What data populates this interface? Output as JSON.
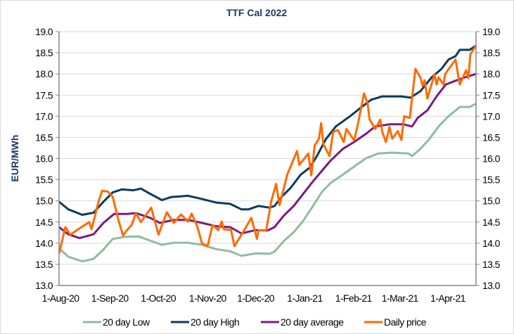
{
  "chart_data": {
    "type": "line",
    "title": "TTF Cal 2022",
    "xlabel": "",
    "ylabel": "EUR/MWh",
    "x_unit": "trading day index",
    "xlim": [
      0,
      185
    ],
    "ylim": [
      13.0,
      19.0
    ],
    "y_ticks": [
      "13.0",
      "13.5",
      "14.0",
      "14.5",
      "15.0",
      "15.5",
      "16.0",
      "16.5",
      "17.0",
      "17.5",
      "18.0",
      "18.5",
      "19.0"
    ],
    "secondary_y_axis": true,
    "grid": "horizontal",
    "legend_position": "bottom",
    "x_ticks": [
      {
        "x": 0,
        "label": "1-Aug-20"
      },
      {
        "x": 21.9,
        "label": "1-Sep-20"
      },
      {
        "x": 43.4,
        "label": "1-Oct-20"
      },
      {
        "x": 65.3,
        "label": "1-Nov-20"
      },
      {
        "x": 86.6,
        "label": "1-Dec-20"
      },
      {
        "x": 108.4,
        "label": "1-Jan-21"
      },
      {
        "x": 130,
        "label": "1-Feb-21"
      },
      {
        "x": 150.6,
        "label": "1-Mar-21"
      },
      {
        "x": 171.9,
        "label": "1-Apr-21"
      }
    ],
    "series": [
      {
        "name": "20 day Low",
        "color": "#8fbc9f",
        "points": [
          [
            0,
            13.88
          ],
          [
            4.1,
            13.68
          ],
          [
            10.3,
            13.57
          ],
          [
            15.3,
            13.63
          ],
          [
            19.7,
            13.85
          ],
          [
            23.8,
            14.1
          ],
          [
            29.1,
            14.15
          ],
          [
            35.3,
            14.16
          ],
          [
            40.3,
            14.06
          ],
          [
            45.6,
            13.96
          ],
          [
            50.9,
            14.01
          ],
          [
            57.2,
            14.01
          ],
          [
            63.4,
            13.96
          ],
          [
            69.7,
            13.86
          ],
          [
            75.9,
            13.81
          ],
          [
            80.9,
            13.7
          ],
          [
            87.2,
            13.76
          ],
          [
            93.4,
            13.75
          ],
          [
            95.6,
            13.8
          ],
          [
            99.7,
            14.05
          ],
          [
            104.1,
            14.26
          ],
          [
            108.1,
            14.51
          ],
          [
            112.2,
            14.84
          ],
          [
            116.6,
            15.21
          ],
          [
            120.6,
            15.43
          ],
          [
            125.9,
            15.62
          ],
          [
            130.9,
            15.81
          ],
          [
            136.3,
            16.01
          ],
          [
            141.6,
            16.12
          ],
          [
            147.8,
            16.14
          ],
          [
            155,
            16.12
          ],
          [
            156.6,
            16.06
          ],
          [
            160.3,
            16.23
          ],
          [
            164.4,
            16.47
          ],
          [
            168.4,
            16.76
          ],
          [
            172.8,
            17.0
          ],
          [
            177.8,
            17.22
          ],
          [
            182.2,
            17.22
          ],
          [
            185,
            17.3
          ]
        ]
      },
      {
        "name": "20 day High",
        "color": "#0b3a5c",
        "points": [
          [
            0,
            14.98
          ],
          [
            4.1,
            14.8
          ],
          [
            10.3,
            14.67
          ],
          [
            15.3,
            14.72
          ],
          [
            19.7,
            14.98
          ],
          [
            23.8,
            15.2
          ],
          [
            27.8,
            15.27
          ],
          [
            33.1,
            15.25
          ],
          [
            36.3,
            15.29
          ],
          [
            40.3,
            15.17
          ],
          [
            45.6,
            15.02
          ],
          [
            49.7,
            15.09
          ],
          [
            57.2,
            15.12
          ],
          [
            62.2,
            15.06
          ],
          [
            69.7,
            14.96
          ],
          [
            75.9,
            14.93
          ],
          [
            80.9,
            14.8
          ],
          [
            84.1,
            14.8
          ],
          [
            88.4,
            14.88
          ],
          [
            93.4,
            14.84
          ],
          [
            95.6,
            14.88
          ],
          [
            98.8,
            15.1
          ],
          [
            102.8,
            15.31
          ],
          [
            107.2,
            15.62
          ],
          [
            111.3,
            15.79
          ],
          [
            114.4,
            16.06
          ],
          [
            118.4,
            16.46
          ],
          [
            122.8,
            16.76
          ],
          [
            129.1,
            17.0
          ],
          [
            133.1,
            17.17
          ],
          [
            138.4,
            17.39
          ],
          [
            143.4,
            17.47
          ],
          [
            151.9,
            17.47
          ],
          [
            155.9,
            17.44
          ],
          [
            160.3,
            17.59
          ],
          [
            165.3,
            17.92
          ],
          [
            169.7,
            18.12
          ],
          [
            172.8,
            18.34
          ],
          [
            175.9,
            18.42
          ],
          [
            177.8,
            18.57
          ],
          [
            182.2,
            18.57
          ],
          [
            185,
            18.67
          ]
        ]
      },
      {
        "name": "20 day average",
        "color": "#7b1a7e",
        "points": [
          [
            0,
            14.38
          ],
          [
            4.1,
            14.21
          ],
          [
            9.1,
            14.12
          ],
          [
            15.3,
            14.21
          ],
          [
            19.7,
            14.48
          ],
          [
            24.4,
            14.69
          ],
          [
            30,
            14.69
          ],
          [
            34.1,
            14.71
          ],
          [
            40.3,
            14.6
          ],
          [
            44.7,
            14.48
          ],
          [
            50.9,
            14.55
          ],
          [
            57.2,
            14.55
          ],
          [
            63.4,
            14.48
          ],
          [
            69.7,
            14.4
          ],
          [
            75.9,
            14.38
          ],
          [
            80.9,
            14.23
          ],
          [
            87.2,
            14.31
          ],
          [
            92.5,
            14.3
          ],
          [
            95.6,
            14.38
          ],
          [
            99.7,
            14.65
          ],
          [
            104.1,
            14.88
          ],
          [
            108.1,
            15.15
          ],
          [
            112.2,
            15.43
          ],
          [
            116.6,
            15.71
          ],
          [
            120.6,
            15.96
          ],
          [
            125.9,
            16.23
          ],
          [
            130.9,
            16.39
          ],
          [
            136.3,
            16.59
          ],
          [
            140.3,
            16.76
          ],
          [
            146.6,
            16.81
          ],
          [
            152.8,
            16.81
          ],
          [
            156.6,
            16.76
          ],
          [
            159.1,
            16.96
          ],
          [
            163.4,
            17.14
          ],
          [
            167.5,
            17.47
          ],
          [
            171.6,
            17.75
          ],
          [
            175.9,
            17.84
          ],
          [
            180,
            17.92
          ],
          [
            185,
            18.0
          ]
        ]
      },
      {
        "name": "Daily price",
        "color": "#ff6a00",
        "points": [
          [
            0,
            13.76
          ],
          [
            2.8,
            14.38
          ],
          [
            5,
            14.2
          ],
          [
            9.1,
            14.35
          ],
          [
            13.4,
            14.5
          ],
          [
            14.4,
            14.33
          ],
          [
            17.5,
            14.98
          ],
          [
            19.1,
            15.24
          ],
          [
            21.6,
            15.22
          ],
          [
            23.8,
            15.1
          ],
          [
            26.3,
            14.55
          ],
          [
            28.4,
            14.18
          ],
          [
            30,
            14.3
          ],
          [
            32.2,
            14.43
          ],
          [
            34.1,
            14.71
          ],
          [
            36.3,
            14.5
          ],
          [
            40.9,
            14.84
          ],
          [
            44.1,
            14.2
          ],
          [
            47.8,
            14.73
          ],
          [
            50.9,
            14.48
          ],
          [
            54.1,
            14.68
          ],
          [
            57.2,
            14.51
          ],
          [
            58.8,
            14.7
          ],
          [
            61.3,
            14.4
          ],
          [
            63.4,
            14.0
          ],
          [
            65.9,
            13.93
          ],
          [
            68.1,
            14.43
          ],
          [
            70.6,
            14.31
          ],
          [
            72.2,
            14.51
          ],
          [
            73.1,
            14.33
          ],
          [
            76.3,
            14.31
          ],
          [
            77.8,
            13.93
          ],
          [
            82.2,
            14.31
          ],
          [
            85.3,
            14.6
          ],
          [
            87.8,
            14.1
          ],
          [
            88.4,
            14.3
          ],
          [
            91.9,
            14.31
          ],
          [
            94.1,
            14.98
          ],
          [
            96.3,
            15.4
          ],
          [
            97.8,
            14.9
          ],
          [
            101.3,
            15.63
          ],
          [
            105.6,
            16.18
          ],
          [
            106.6,
            15.85
          ],
          [
            110.6,
            16.12
          ],
          [
            111.9,
            15.6
          ],
          [
            113.4,
            16.31
          ],
          [
            115.3,
            16.47
          ],
          [
            116.3,
            16.84
          ],
          [
            117.2,
            16.35
          ],
          [
            120,
            16.06
          ],
          [
            121.6,
            16.63
          ],
          [
            123.8,
            16.67
          ],
          [
            126.3,
            16.39
          ],
          [
            127.5,
            16.7
          ],
          [
            130.9,
            16.43
          ],
          [
            132.5,
            16.79
          ],
          [
            135.3,
            17.54
          ],
          [
            136.9,
            17.3
          ],
          [
            137.8,
            16.92
          ],
          [
            140.3,
            16.7
          ],
          [
            142.5,
            16.92
          ],
          [
            143.4,
            16.63
          ],
          [
            145,
            16.39
          ],
          [
            146.6,
            16.75
          ],
          [
            147.8,
            16.47
          ],
          [
            150.3,
            16.65
          ],
          [
            151.9,
            16.44
          ],
          [
            153.1,
            17.0
          ],
          [
            155.6,
            16.96
          ],
          [
            158.1,
            18.12
          ],
          [
            160.3,
            17.92
          ],
          [
            161.3,
            17.72
          ],
          [
            162.2,
            17.85
          ],
          [
            163.4,
            17.42
          ],
          [
            166.6,
            18.0
          ],
          [
            167.5,
            17.75
          ],
          [
            168.4,
            17.92
          ],
          [
            170.6,
            17.75
          ],
          [
            171.3,
            18.0
          ],
          [
            175.9,
            18.34
          ],
          [
            177.8,
            17.75
          ],
          [
            180.6,
            18.09
          ],
          [
            181.6,
            17.9
          ],
          [
            182.5,
            18.47
          ],
          [
            185,
            18.67
          ]
        ]
      }
    ]
  }
}
